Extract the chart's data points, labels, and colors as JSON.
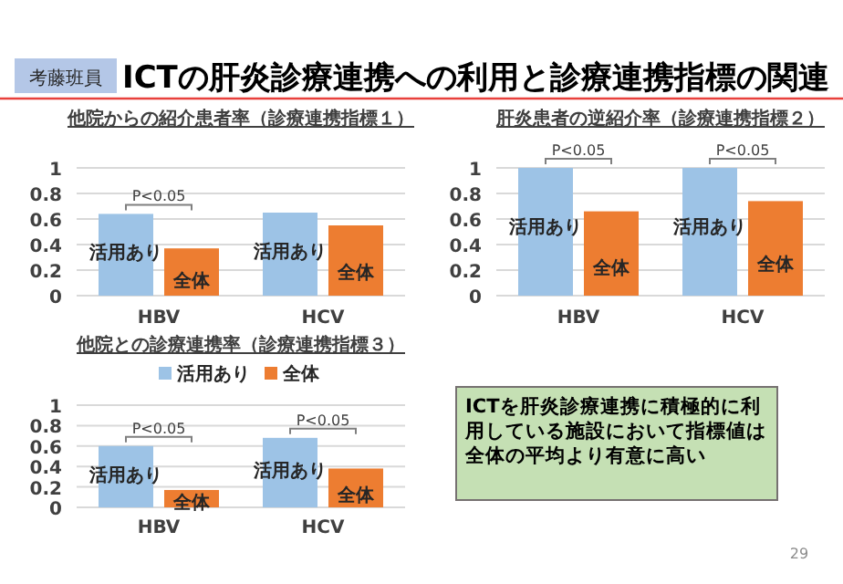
{
  "chart_data": [
    {
      "type": "bar",
      "title": "他院からの紹介患者率（診療連携指標１）",
      "categories": [
        "HBV",
        "HCV"
      ],
      "ylim": [
        0,
        1
      ],
      "yticks": [
        0,
        0.2,
        0.4,
        0.6,
        0.8,
        1
      ],
      "grid": "y",
      "legend": false,
      "series": [
        {
          "name": "活用あり",
          "color": "#9dc3e6",
          "values": [
            0.64,
            0.65
          ]
        },
        {
          "name": "全体",
          "color": "#ed7d31",
          "values": [
            0.37,
            0.55
          ]
        }
      ],
      "annotations": [
        {
          "text": "P<0.05",
          "x": "HBV",
          "y": 0.64
        }
      ]
    },
    {
      "type": "bar",
      "title": "肝炎患者の逆紹介率（診療連携指標２）",
      "categories": [
        "HBV",
        "HCV"
      ],
      "ylim": [
        0,
        1
      ],
      "yticks": [
        0,
        0.2,
        0.4,
        0.6,
        0.8,
        1
      ],
      "grid": "y",
      "legend": false,
      "series": [
        {
          "name": "活用あり",
          "color": "#9dc3e6",
          "values": [
            1,
            1
          ]
        },
        {
          "name": "全体",
          "color": "#ed7d31",
          "values": [
            0.66,
            0.74
          ]
        }
      ],
      "annotations": [
        {
          "text": "P<0.05",
          "x": "HBV",
          "y": 1
        },
        {
          "text": "P<0.05",
          "x": "HCV",
          "y": 1
        }
      ]
    },
    {
      "type": "bar",
      "title": "他院との診療連携率（診療連携指標３）",
      "categories": [
        "HBV",
        "HCV"
      ],
      "ylim": [
        0,
        1
      ],
      "yticks": [
        0,
        0.2,
        0.4,
        0.6,
        0.8,
        1
      ],
      "grid": "y",
      "legend": "top",
      "series": [
        {
          "name": "活用あり",
          "color": "#9dc3e6",
          "values": [
            0.6,
            0.68
          ]
        },
        {
          "name": "全体",
          "color": "#ed7d31",
          "values": [
            0.17,
            0.38
          ]
        }
      ],
      "annotations": [
        {
          "text": "P<0.05",
          "x": "HBV",
          "y": 0.6
        },
        {
          "text": "P<0.05",
          "x": "HCV",
          "y": 0.68
        }
      ]
    },
    {
      "type": "other",
      "title": "ICTの肝炎診療連携への利用と診療連携指標の関連",
      "annotations": [
        "考藤班員",
        "ICTを肝炎診療連携に積極的に利用している施設において指標値は全体の平均より有意に高い",
        "29"
      ]
    }
  ]
}
